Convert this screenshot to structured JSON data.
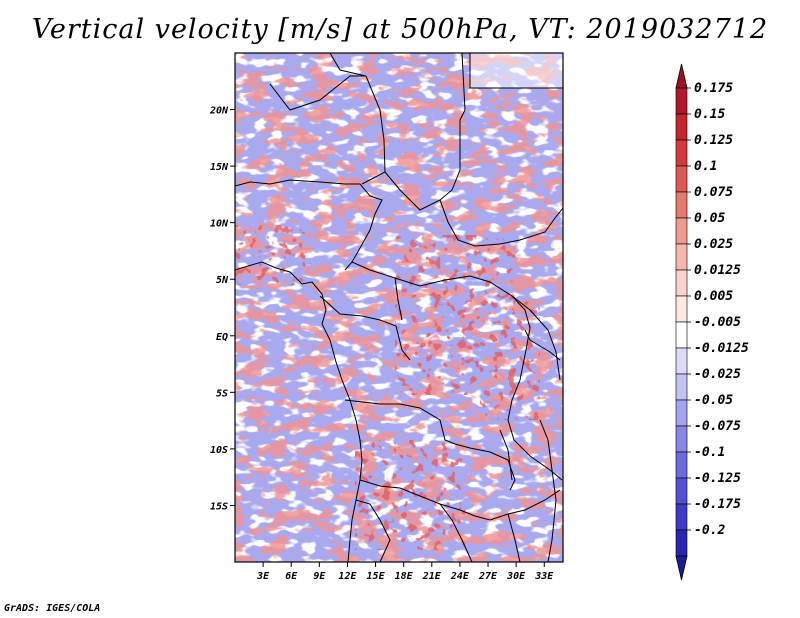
{
  "title": "Vertical velocity [m/s] at 500hPa, VT: 2019032712",
  "footer": "GrADS: IGES/COLA",
  "map": {
    "lon_range": [
      0,
      35
    ],
    "lat_range": [
      -20,
      25
    ],
    "lon_ticks": [
      {
        "value": 3,
        "label": "3E"
      },
      {
        "value": 6,
        "label": "6E"
      },
      {
        "value": 9,
        "label": "9E"
      },
      {
        "value": 12,
        "label": "12E"
      },
      {
        "value": 15,
        "label": "15E"
      },
      {
        "value": 18,
        "label": "18E"
      },
      {
        "value": 21,
        "label": "21E"
      },
      {
        "value": 24,
        "label": "24E"
      },
      {
        "value": 27,
        "label": "27E"
      },
      {
        "value": 30,
        "label": "30E"
      },
      {
        "value": 33,
        "label": "33E"
      }
    ],
    "lat_ticks": [
      {
        "value": 20,
        "label": "20N"
      },
      {
        "value": 15,
        "label": "15N"
      },
      {
        "value": 10,
        "label": "10N"
      },
      {
        "value": 5,
        "label": "5N"
      },
      {
        "value": 0,
        "label": "EQ"
      },
      {
        "value": -5,
        "label": "5S"
      },
      {
        "value": -10,
        "label": "10S"
      },
      {
        "value": -15,
        "label": "15S"
      }
    ]
  },
  "colorbar": {
    "levels": [
      {
        "label": "0.175",
        "color": "#b2182b"
      },
      {
        "label": "0.15",
        "color": "#c4262e"
      },
      {
        "label": "0.125",
        "color": "#d33a39"
      },
      {
        "label": "0.1",
        "color": "#de5a50"
      },
      {
        "label": "0.075",
        "color": "#e57b6e"
      },
      {
        "label": "0.05",
        "color": "#ef9b8f"
      },
      {
        "label": "0.025",
        "color": "#f6b8ae"
      },
      {
        "label": "0.0125",
        "color": "#fbd3cc"
      },
      {
        "label": "0.005",
        "color": "#fde8e4"
      },
      {
        "label": "-0.005",
        "color": "#ffffff"
      },
      {
        "label": "-0.0125",
        "color": "#dcdcfa"
      },
      {
        "label": "-0.025",
        "color": "#c2c2f5"
      },
      {
        "label": "-0.05",
        "color": "#a3a3ef"
      },
      {
        "label": "-0.075",
        "color": "#8787e8"
      },
      {
        "label": "-0.1",
        "color": "#6b6be0"
      },
      {
        "label": "-0.125",
        "color": "#5151d6"
      },
      {
        "label": "-0.175",
        "color": "#3b3bc8"
      },
      {
        "label": "-0.2",
        "color": "#2626b0"
      }
    ],
    "top_color": "#a00f23",
    "bottom_color": "#1a1aa0"
  }
}
